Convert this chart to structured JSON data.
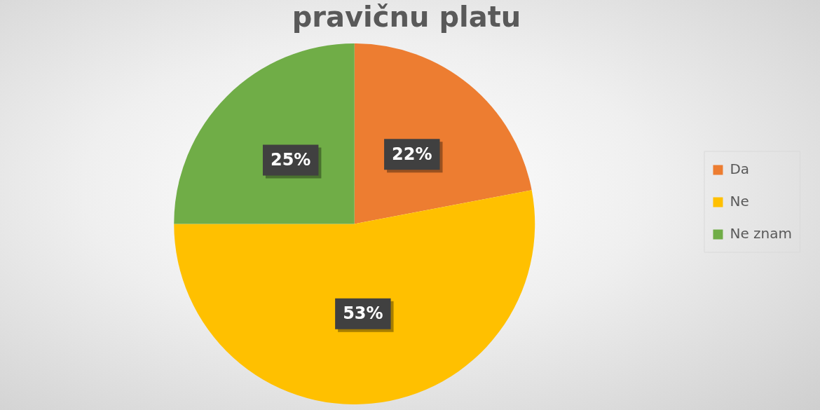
{
  "chart_data": {
    "type": "pie",
    "title": "pravičnu platu",
    "categories": [
      "Da",
      "Ne",
      "Ne znam"
    ],
    "values": [
      22,
      53,
      25
    ],
    "colors": [
      "#ed7d31",
      "#ffc000",
      "#70ad47"
    ],
    "value_labels": [
      "22%",
      "53%",
      "25%"
    ],
    "legend": "right"
  }
}
